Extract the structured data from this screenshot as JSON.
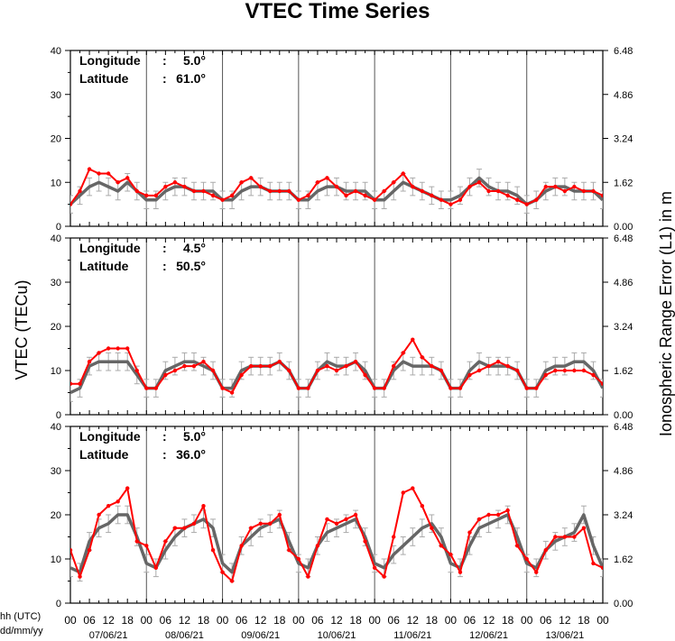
{
  "chart_data": {
    "type": "line",
    "title": "VTEC Time Series",
    "ylabel_left": "VTEC (TECu)",
    "ylabel_right": "Ionospheric Range Error (L1) in m",
    "x_axis_labels": {
      "hour_label": "hh (UTC)",
      "date_label": "dd/mm/yy"
    },
    "x_hour_ticks": [
      "00",
      "06",
      "12",
      "18",
      "00",
      "06",
      "12",
      "18",
      "00",
      "06",
      "12",
      "18",
      "00",
      "06",
      "12",
      "18",
      "00",
      "06",
      "12",
      "18",
      "00",
      "06",
      "12",
      "18",
      "00",
      "06",
      "12",
      "18",
      "00"
    ],
    "x_days": [
      "07/06/21",
      "08/06/21",
      "09/06/21",
      "10/06/21",
      "11/06/21",
      "12/06/21",
      "13/06/21"
    ],
    "x_range_hours": [
      0,
      168
    ],
    "ylim": [
      0,
      40
    ],
    "y_ticks_left": [
      "0",
      "10",
      "20",
      "30",
      "40"
    ],
    "y_ticks_right": [
      "0.00",
      "1.62",
      "3.24",
      "4.86",
      "6.48"
    ],
    "series_colors": {
      "model": "#666666",
      "observed": "#ff0000"
    },
    "panels": [
      {
        "longitude_label": "Longitude",
        "longitude_value": "5.0°",
        "latitude_label": "Latitude",
        "latitude_value": "61.0°",
        "series": [
          {
            "role": "model",
            "x": [
              0,
              3,
              6,
              9,
              12,
              15,
              18,
              21,
              24,
              27,
              30,
              33,
              36,
              39,
              42,
              45,
              48,
              51,
              54,
              57,
              60,
              63,
              66,
              69,
              72,
              75,
              78,
              81,
              84,
              87,
              90,
              93,
              96,
              99,
              102,
              105,
              108,
              111,
              114,
              117,
              120,
              123,
              126,
              129,
              132,
              135,
              138,
              141,
              144,
              147,
              150,
              153,
              156,
              159,
              162,
              165,
              168
            ],
            "y": [
              5,
              7,
              9,
              10,
              9,
              8,
              10,
              8,
              6,
              6,
              8,
              9,
              9,
              8,
              8,
              8,
              6,
              6,
              8,
              9,
              9,
              8,
              8,
              8,
              6,
              6,
              8,
              9,
              9,
              8,
              8,
              8,
              6,
              6,
              8,
              10,
              9,
              8,
              7,
              6,
              6,
              7,
              9,
              11,
              9,
              8,
              8,
              7,
              5,
              6,
              8,
              9,
              9,
              8,
              8,
              8,
              6
            ]
          },
          {
            "role": "observed",
            "x": [
              0,
              3,
              6,
              9,
              12,
              15,
              18,
              21,
              24,
              27,
              30,
              33,
              36,
              39,
              42,
              45,
              48,
              51,
              54,
              57,
              60,
              63,
              66,
              69,
              72,
              75,
              78,
              81,
              84,
              87,
              90,
              93,
              96,
              99,
              102,
              105,
              108,
              111,
              114,
              117,
              120,
              123,
              126,
              129,
              132,
              135,
              138,
              141,
              144,
              147,
              150,
              153,
              156,
              159,
              162,
              165,
              168
            ],
            "y": [
              5,
              8,
              13,
              12,
              12,
              10,
              11,
              8,
              7,
              7,
              9,
              10,
              9,
              8,
              8,
              7,
              6,
              7,
              10,
              11,
              9,
              8,
              8,
              8,
              6,
              7,
              10,
              11,
              9,
              7,
              8,
              7,
              6,
              8,
              10,
              12,
              9,
              8,
              7,
              6,
              5,
              6,
              9,
              10,
              8,
              8,
              7,
              6,
              5,
              6,
              9,
              9,
              8,
              9,
              8,
              8,
              7
            ]
          }
        ]
      },
      {
        "longitude_label": "Longitude",
        "longitude_value": "4.5°",
        "latitude_label": "Latitude",
        "latitude_value": "50.5°",
        "series": [
          {
            "role": "model",
            "x": [
              0,
              3,
              6,
              9,
              12,
              15,
              18,
              21,
              24,
              27,
              30,
              33,
              36,
              39,
              42,
              45,
              48,
              51,
              54,
              57,
              60,
              63,
              66,
              69,
              72,
              75,
              78,
              81,
              84,
              87,
              90,
              93,
              96,
              99,
              102,
              105,
              108,
              111,
              114,
              117,
              120,
              123,
              126,
              129,
              132,
              135,
              138,
              141,
              144,
              147,
              150,
              153,
              156,
              159,
              162,
              165,
              168
            ],
            "y": [
              5,
              6,
              11,
              12,
              12,
              12,
              12,
              9,
              6,
              6,
              10,
              11,
              12,
              12,
              11,
              10,
              6,
              6,
              10,
              11,
              11,
              11,
              12,
              10,
              6,
              6,
              10,
              12,
              11,
              11,
              12,
              10,
              6,
              6,
              10,
              12,
              11,
              11,
              11,
              10,
              6,
              6,
              10,
              12,
              11,
              11,
              11,
              10,
              6,
              6,
              10,
              11,
              11,
              12,
              12,
              10,
              6
            ]
          },
          {
            "role": "observed",
            "x": [
              0,
              3,
              6,
              9,
              12,
              15,
              18,
              21,
              24,
              27,
              30,
              33,
              36,
              39,
              42,
              45,
              48,
              51,
              54,
              57,
              60,
              63,
              66,
              69,
              72,
              75,
              78,
              81,
              84,
              87,
              90,
              93,
              96,
              99,
              102,
              105,
              108,
              111,
              114,
              117,
              120,
              123,
              126,
              129,
              132,
              135,
              138,
              141,
              144,
              147,
              150,
              153,
              156,
              159,
              162,
              165,
              168
            ],
            "y": [
              7,
              7,
              12,
              14,
              15,
              15,
              15,
              10,
              6,
              6,
              9,
              10,
              11,
              11,
              12,
              10,
              6,
              5,
              9,
              11,
              11,
              11,
              12,
              10,
              6,
              6,
              10,
              11,
              10,
              11,
              12,
              9,
              6,
              6,
              11,
              14,
              17,
              13,
              11,
              10,
              6,
              6,
              9,
              10,
              11,
              12,
              11,
              10,
              6,
              6,
              9,
              10,
              10,
              10,
              10,
              9,
              7
            ]
          }
        ]
      },
      {
        "longitude_label": "Longitude",
        "longitude_value": "5.0°",
        "latitude_label": "Latitude",
        "latitude_value": "36.0°",
        "series": [
          {
            "role": "model",
            "x": [
              0,
              3,
              6,
              9,
              12,
              15,
              18,
              21,
              24,
              27,
              30,
              33,
              36,
              39,
              42,
              45,
              48,
              51,
              54,
              57,
              60,
              63,
              66,
              69,
              72,
              75,
              78,
              81,
              84,
              87,
              90,
              93,
              96,
              99,
              102,
              105,
              108,
              111,
              114,
              117,
              120,
              123,
              126,
              129,
              132,
              135,
              138,
              141,
              144,
              147,
              150,
              153,
              156,
              159,
              162,
              165,
              168
            ],
            "y": [
              8,
              7,
              14,
              17,
              18,
              20,
              20,
              15,
              9,
              8,
              12,
              15,
              17,
              18,
              19,
              17,
              9,
              7,
              13,
              15,
              17,
              18,
              19,
              14,
              9,
              8,
              13,
              16,
              17,
              18,
              19,
              15,
              9,
              8,
              11,
              13,
              15,
              17,
              18,
              15,
              9,
              8,
              13,
              17,
              18,
              19,
              20,
              15,
              9,
              8,
              12,
              14,
              15,
              16,
              20,
              13,
              8
            ]
          },
          {
            "role": "observed",
            "x": [
              0,
              3,
              6,
              9,
              12,
              15,
              18,
              21,
              24,
              27,
              30,
              33,
              36,
              39,
              42,
              45,
              48,
              51,
              54,
              57,
              60,
              63,
              66,
              69,
              72,
              75,
              78,
              81,
              84,
              87,
              90,
              93,
              96,
              99,
              102,
              105,
              108,
              111,
              114,
              117,
              120,
              123,
              126,
              129,
              132,
              135,
              138,
              141,
              144,
              147,
              150,
              153,
              156,
              159,
              162,
              165,
              168
            ],
            "y": [
              12,
              6,
              12,
              20,
              22,
              23,
              26,
              14,
              13,
              8,
              14,
              17,
              17,
              18,
              22,
              12,
              7,
              5,
              13,
              17,
              18,
              18,
              20,
              12,
              10,
              6,
              13,
              19,
              18,
              19,
              20,
              14,
              8,
              6,
              15,
              25,
              26,
              22,
              17,
              13,
              11,
              7,
              16,
              19,
              20,
              20,
              21,
              13,
              10,
              7,
              12,
              15,
              15,
              15,
              17,
              9,
              8
            ]
          }
        ]
      }
    ]
  }
}
